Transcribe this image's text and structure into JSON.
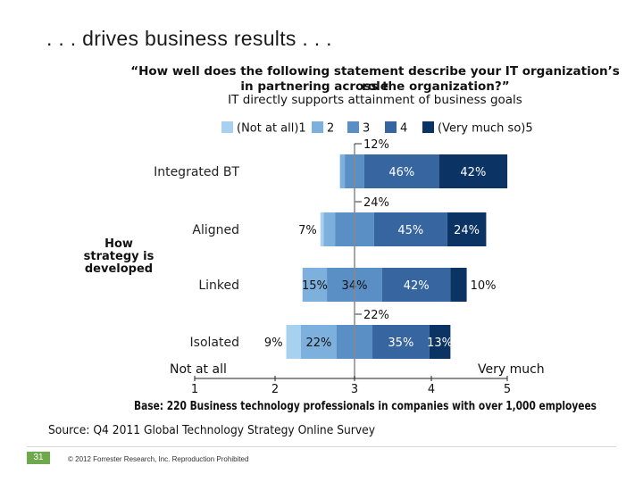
{
  "slide": {
    "title": ". . . drives business results . . .",
    "slide_number": "31",
    "copyright": "© 2012 Forrester Research, Inc. Reproduction Prohibited"
  },
  "question": {
    "line1": "“How well does the following statement describe your IT organization’s role",
    "line2": "in partnering across the organization?”",
    "statement": "IT directly supports attainment of business goals"
  },
  "colors": {
    "c1": "#a8d0ef",
    "c2": "#7eb0dd",
    "c3": "#5a8fc5",
    "c4": "#36659f",
    "c5": "#0b3464",
    "axis_line": "#888888"
  },
  "chart_data": {
    "type": "bar",
    "stacked": "diverging",
    "title": "IT directly supports attainment of business goals",
    "ylabel": "How strategy is developed",
    "categories": [
      "Integrated BT",
      "Aligned",
      "Linked",
      "Isolated"
    ],
    "xaxis": {
      "ticks": [
        1,
        2,
        3,
        4,
        5
      ],
      "left_label": "Not at all",
      "right_label": "Very much"
    },
    "legend": [
      "(Not at all)1",
      "2",
      "3",
      "4",
      "(Very much so)5"
    ],
    "segments": [
      [
        0,
        3,
        12,
        46,
        42
      ],
      [
        2,
        7,
        24,
        45,
        24
      ],
      [
        0,
        15,
        34,
        42,
        10
      ],
      [
        9,
        22,
        22,
        35,
        13
      ]
    ],
    "labels": [
      [
        {
          "text": "12%",
          "seg": 2,
          "callout": true
        },
        {
          "text": "46%",
          "seg": 3
        },
        {
          "text": "42%",
          "seg": 4
        }
      ],
      [
        {
          "text": "7%",
          "seg": 1,
          "outside": true
        },
        {
          "text": "24%",
          "seg": 2,
          "callout": true
        },
        {
          "text": "45%",
          "seg": 3
        },
        {
          "text": "24%",
          "seg": 4,
          "light": true
        }
      ],
      [
        {
          "text": "15%",
          "seg": 1
        },
        {
          "text": "34%",
          "seg": 2
        },
        {
          "text": "42%",
          "seg": 3
        },
        {
          "text": "10%",
          "seg": 4,
          "outside": true
        }
      ],
      [
        {
          "text": "9%",
          "seg": 0,
          "outside": true
        },
        {
          "text": "22%",
          "seg": 1
        },
        {
          "text": "22%",
          "seg": 2,
          "callout": true
        },
        {
          "text": "35%",
          "seg": 3
        },
        {
          "text": "13%",
          "seg": 4,
          "light": true
        }
      ]
    ]
  },
  "side_label": [
    "How",
    "strategy is",
    "developed"
  ],
  "base_note": "Base: 220 Business technology professionals in companies with over 1,000 employees",
  "source": "Source: Q4 2011 Global Technology Strategy Online Survey"
}
